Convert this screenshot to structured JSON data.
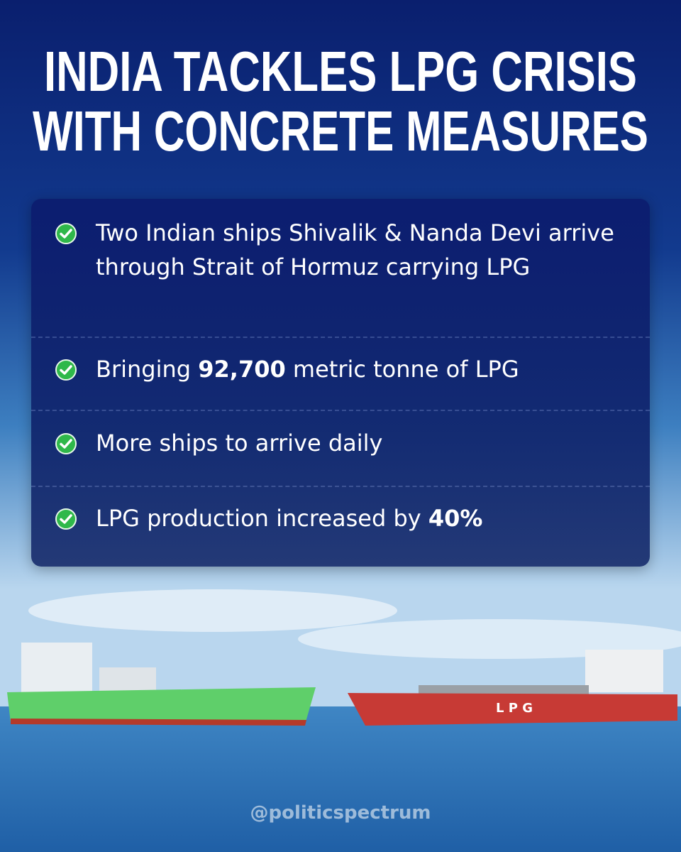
{
  "header": {
    "title_lines": [
      "INDIA TACKLES LPG CRISIS",
      "WITH CONCRETE MEASURES"
    ]
  },
  "items": [
    {
      "parts": [
        {
          "text": "Two Indian ships Shivalik & Nanda Devi arrive through Strait of Hormuz carrying LPG"
        }
      ]
    },
    {
      "parts": [
        {
          "text": "Bringing "
        },
        {
          "text": "92,700",
          "bold": true
        },
        {
          "text": " metric tonne of LPG"
        }
      ]
    },
    {
      "parts": [
        {
          "text": "More ships to arrive daily"
        }
      ]
    },
    {
      "parts": [
        {
          "text": "LPG production increased by "
        },
        {
          "text": "40%",
          "bold": true
        }
      ]
    }
  ],
  "ship_label": "L P G",
  "watermark": "@politicspectrum"
}
